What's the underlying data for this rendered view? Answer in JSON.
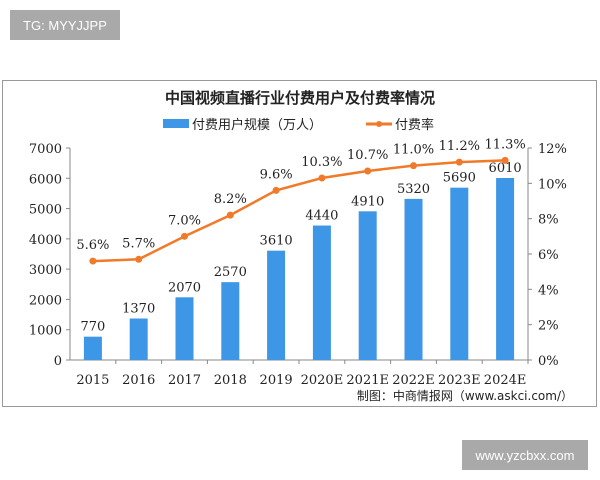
{
  "tags": {
    "top": "TG: MYYJJPP",
    "bottom": "www.yzcbxx.com"
  },
  "chart_data": {
    "type": "bar+line",
    "title": "中国视频直播行业付费用户及付费率情况",
    "categories": [
      "2015",
      "2016",
      "2017",
      "2018",
      "2019",
      "2020E",
      "2021E",
      "2022E",
      "2023E",
      "2024E"
    ],
    "series": [
      {
        "name": "付费用户规模（万人）",
        "type": "bar",
        "axis": "left",
        "color": "#3d96e6",
        "values": [
          770,
          1370,
          2070,
          2570,
          3610,
          4440,
          4910,
          5320,
          5690,
          6010
        ]
      },
      {
        "name": "付费率",
        "type": "line",
        "axis": "right",
        "color": "#f07a2a",
        "values": [
          5.6,
          5.7,
          7.0,
          8.2,
          9.6,
          10.3,
          10.7,
          11.0,
          11.2,
          11.3
        ],
        "labels": [
          "5.6%",
          "5.7%",
          "7.0%",
          "8.2%",
          "9.6%",
          "10.3%",
          "10.7%",
          "11.0%",
          "11.2%",
          "11.3%"
        ]
      }
    ],
    "y_left": {
      "min": 0,
      "max": 7000,
      "ticks": [
        "0",
        "1000",
        "2000",
        "3000",
        "4000",
        "5000",
        "6000",
        "7000"
      ]
    },
    "y_right": {
      "min": 0,
      "max": 12,
      "ticks": [
        "0%",
        "2%",
        "4%",
        "6%",
        "8%",
        "10%",
        "12%"
      ]
    },
    "legend_position": "top",
    "grid": false,
    "source": "制图：中商情报网（www.askci.com/）"
  }
}
